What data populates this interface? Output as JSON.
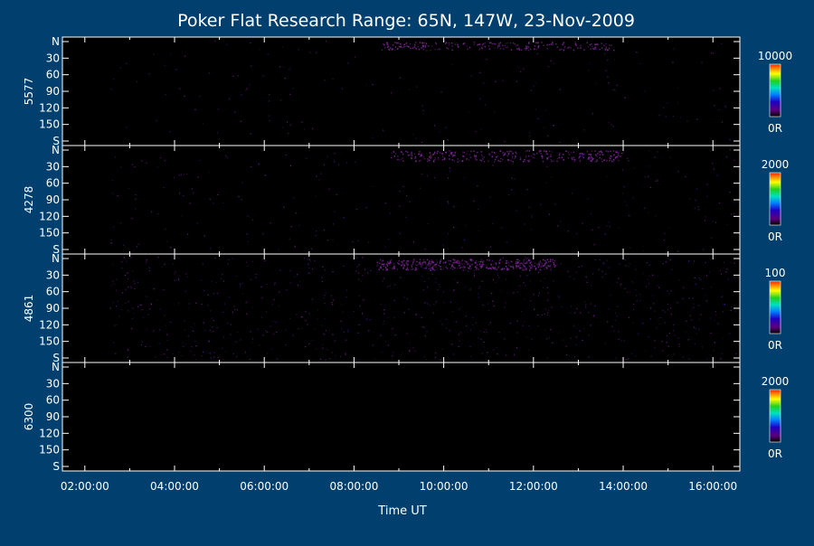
{
  "chart_data": {
    "type": "heatmap",
    "title": "Poker Flat Research Range: 65N, 147W, 23-Nov-2009",
    "xlabel": "Time UT",
    "x_tick_labels": [
      "02:00:00",
      "04:00:00",
      "06:00:00",
      "08:00:00",
      "10:00:00",
      "12:00:00",
      "14:00:00",
      "16:00:00"
    ],
    "x_range_hours": [
      1.5,
      16.6
    ],
    "y_tick_labels": [
      "N",
      "30",
      "60",
      "90",
      "120",
      "150",
      "S"
    ],
    "y_range_deg": [
      0,
      180
    ],
    "data_start_hour": 2.55,
    "panels": [
      {
        "ylabel": "5577",
        "colorbar": {
          "max_label": "10000",
          "min_label": "0R"
        },
        "mean_intensity": 0.07,
        "bright_regions": [
          {
            "t_start": 8.6,
            "t_end": 13.8,
            "angle_start": 0,
            "angle_end": 15,
            "intensity": 0.25
          }
        ]
      },
      {
        "ylabel": "4278",
        "colorbar": {
          "max_label": "2000",
          "min_label": "0R"
        },
        "mean_intensity": 0.1,
        "bright_regions": [
          {
            "t_start": 8.8,
            "t_end": 14.0,
            "angle_start": 0,
            "angle_end": 20,
            "intensity": 0.35
          }
        ]
      },
      {
        "ylabel": "4861",
        "colorbar": {
          "max_label": "100",
          "min_label": "0R"
        },
        "mean_intensity": 0.3,
        "bright_regions": [
          {
            "t_start": 8.5,
            "t_end": 12.5,
            "angle_start": 0,
            "angle_end": 20,
            "intensity": 0.45
          }
        ]
      },
      {
        "ylabel": "6300",
        "colorbar": {
          "max_label": "2000",
          "min_label": "0R"
        },
        "mean_intensity": 0.0,
        "bright_regions": []
      }
    ]
  }
}
